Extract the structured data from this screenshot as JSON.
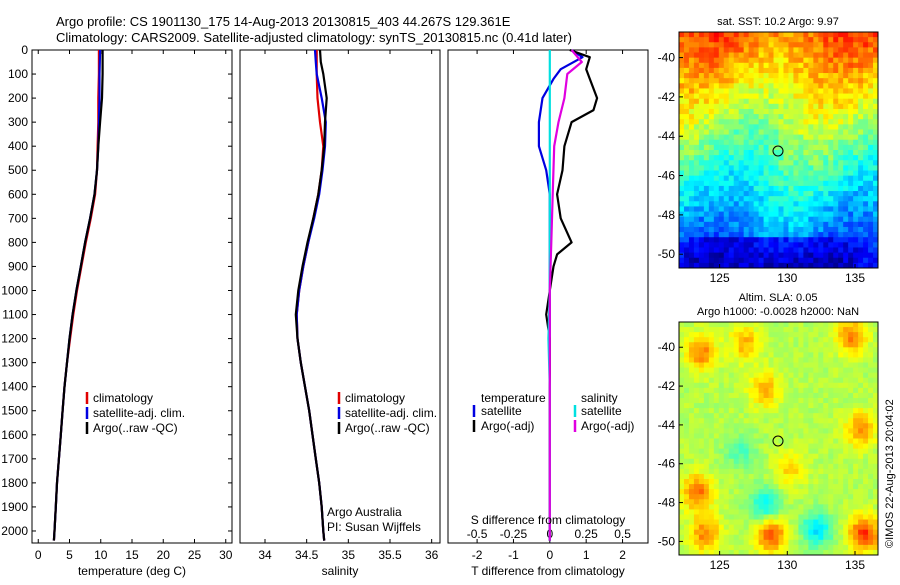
{
  "header": {
    "line1": "Argo profile: CS 1901130_175 14-Aug-2013 20130815_403 44.267S 129.361E",
    "line2": "Climatology: CARS2009. Satellite-adjusted climatology: synTS_20130815.nc (0.41d later)"
  },
  "colors": {
    "climatology": "#e00000",
    "satellite": "#0000e0",
    "argo": "#000000",
    "salinity_satellite": "#00e0e0",
    "salinity_argo": "#e000e0"
  },
  "panels": {
    "depth_ticks": [
      "0",
      "100",
      "200",
      "300",
      "400",
      "500",
      "600",
      "700",
      "800",
      "900",
      "1000",
      "1100",
      "1200",
      "1300",
      "1400",
      "1500",
      "1600",
      "1700",
      "1800",
      "1900",
      "2000"
    ],
    "temperature": {
      "xlabel": "temperature (deg C)",
      "xticks": [
        "0",
        "5",
        "10",
        "15",
        "20",
        "25",
        "30"
      ],
      "legend": [
        "climatology",
        "satellite-adj. clim.",
        "Argo(..raw -QC)"
      ]
    },
    "salinity": {
      "xlabel": "salinity",
      "xticks": [
        "34",
        "34.5",
        "35",
        "35.5",
        "36"
      ],
      "legend": [
        "climatology",
        "satellite-adj. clim.",
        "Argo(..raw -QC)"
      ],
      "credit_line1": "Argo Australia",
      "credit_line2": "PI: Susan Wijffels"
    },
    "difference": {
      "xlabel": "T difference from climatology",
      "xlabel_top": "S difference from climatology",
      "xticks": [
        "-2",
        "-1",
        "0",
        "1",
        "2"
      ],
      "sticks": [
        "-0.5",
        "-0.25",
        "0",
        "0.25",
        "0.5"
      ],
      "legend_temp_title": "temperature",
      "legend_sal_title": "salinity",
      "legend_temp": [
        "satellite",
        "Argo(-adj)"
      ],
      "legend_sal": [
        "satellite",
        "Argo(-adj)"
      ]
    }
  },
  "maps": {
    "sst": {
      "title": "sat. SST: 10.2  Argo: 9.97",
      "yticks": [
        "-40",
        "-42",
        "-44",
        "-46",
        "-48",
        "-50"
      ],
      "xticks": [
        "125",
        "130",
        "135"
      ]
    },
    "sla": {
      "title_line1": "Altim. SLA: 0.05",
      "title_line2": "Argo h1000: -0.0028 h2000: NaN",
      "yticks": [
        "-40",
        "-42",
        "-44",
        "-46",
        "-48",
        "-50"
      ],
      "xticks": [
        "125",
        "130",
        "135"
      ]
    },
    "float_position": {
      "lon": 129.361,
      "lat": -44.267
    }
  },
  "side_stamp": "©IMOS 22-Aug-2013 20:04:02",
  "chart_data": {
    "type": "line",
    "y_axis": {
      "label": "",
      "ylim": [
        0,
        2050
      ],
      "reversed": true
    },
    "temperature": {
      "xlim": [
        -1,
        31
      ],
      "series": [
        {
          "name": "climatology",
          "depth": [
            0,
            100,
            200,
            300,
            400,
            500,
            600,
            700,
            800,
            900,
            1000,
            1100,
            1200,
            1300,
            1400,
            1500,
            1600,
            1700,
            1800,
            1900,
            2000,
            2040
          ],
          "values": [
            9.7,
            9.7,
            9.6,
            9.6,
            9.5,
            9.4,
            9.1,
            8.4,
            7.6,
            6.9,
            6.2,
            5.6,
            5.1,
            4.6,
            4.2,
            3.9,
            3.6,
            3.3,
            3.0,
            2.8,
            2.6,
            2.5
          ]
        },
        {
          "name": "satellite-adj. clim.",
          "depth": [
            0,
            100,
            200,
            300,
            400,
            500,
            600,
            700,
            800,
            900,
            1000,
            1100,
            1200,
            1300,
            1400,
            1500,
            1600,
            1700,
            1800,
            1900,
            2000,
            2040
          ],
          "values": [
            9.9,
            9.8,
            9.8,
            9.7,
            9.6,
            9.4,
            9.0,
            8.3,
            7.5,
            6.8,
            6.1,
            5.5,
            5.0,
            4.6,
            4.2,
            3.9,
            3.6,
            3.3,
            3.0,
            2.8,
            2.6,
            2.5
          ]
        },
        {
          "name": "Argo(..raw -QC)",
          "depth": [
            0,
            100,
            200,
            300,
            400,
            500,
            600,
            700,
            800,
            900,
            1000,
            1100,
            1200,
            1300,
            1400,
            1500,
            1600,
            1700,
            1800,
            1900,
            2000,
            2040
          ],
          "values": [
            10.3,
            10.3,
            10.2,
            9.9,
            9.6,
            9.4,
            9.0,
            8.3,
            7.5,
            6.8,
            6.1,
            5.5,
            5.0,
            4.6,
            4.2,
            3.9,
            3.6,
            3.3,
            3.0,
            2.8,
            2.6,
            2.5
          ]
        }
      ]
    },
    "salinity": {
      "xlim": [
        33.7,
        36.1
      ],
      "series": [
        {
          "name": "climatology",
          "depth": [
            0,
            50,
            100,
            200,
            300,
            400,
            500,
            600,
            700,
            800,
            900,
            1000,
            1100,
            1200,
            1300,
            1400,
            1500,
            1600,
            1700,
            1800,
            1900,
            2000,
            2040
          ],
          "values": [
            34.62,
            34.62,
            34.62,
            34.63,
            34.66,
            34.7,
            34.68,
            34.64,
            34.58,
            34.52,
            34.46,
            34.41,
            34.38,
            34.39,
            34.43,
            34.48,
            34.53,
            34.57,
            34.61,
            34.65,
            34.68,
            34.7,
            34.71
          ]
        },
        {
          "name": "satellite-adj. clim.",
          "depth": [
            0,
            50,
            100,
            200,
            300,
            400,
            500,
            600,
            700,
            800,
            900,
            1000,
            1100,
            1200,
            1300,
            1400,
            1500,
            1600,
            1700,
            1800,
            1900,
            2000,
            2040
          ],
          "values": [
            34.6,
            34.61,
            34.62,
            34.68,
            34.73,
            34.72,
            34.69,
            34.65,
            34.59,
            34.52,
            34.46,
            34.41,
            34.38,
            34.39,
            34.43,
            34.48,
            34.53,
            34.57,
            34.61,
            34.65,
            34.68,
            34.7,
            34.71
          ]
        },
        {
          "name": "Argo(..raw -QC)",
          "depth": [
            0,
            50,
            100,
            200,
            300,
            400,
            500,
            600,
            700,
            800,
            900,
            1000,
            1100,
            1200,
            1300,
            1400,
            1500,
            1600,
            1700,
            1800,
            1900,
            2000,
            2040
          ],
          "values": [
            34.66,
            34.67,
            34.7,
            34.74,
            34.72,
            34.71,
            34.68,
            34.64,
            34.58,
            34.51,
            34.45,
            34.4,
            34.37,
            34.39,
            34.43,
            34.48,
            34.53,
            34.57,
            34.61,
            34.65,
            34.68,
            34.7,
            34.71
          ]
        }
      ]
    },
    "difference": {
      "xlim_T": [
        -2.8,
        2.7
      ],
      "xlim_S": [
        -0.7,
        0.675
      ],
      "series": [
        {
          "name": "temperature satellite",
          "axis": "T",
          "depth": [
            0,
            30,
            80,
            120,
            200,
            300,
            400,
            500,
            600,
            700,
            800,
            1000,
            1200,
            1400,
            1600,
            1800,
            2000,
            2040
          ],
          "values": [
            0.6,
            0.9,
            0.3,
            0.1,
            -0.2,
            -0.3,
            -0.3,
            -0.1,
            0.0,
            0.0,
            0.0,
            0.0,
            0.0,
            0.0,
            0.0,
            0.0,
            0.0,
            0.0
          ]
        },
        {
          "name": "temperature Argo(-adj)",
          "axis": "T",
          "depth": [
            0,
            30,
            80,
            120,
            200,
            250,
            300,
            400,
            500,
            600,
            700,
            800,
            850,
            900,
            1000,
            1100,
            1200,
            1400,
            1600,
            1800,
            2000,
            2040
          ],
          "values": [
            0.55,
            1.1,
            1.0,
            1.1,
            1.3,
            1.2,
            0.6,
            0.4,
            0.35,
            0.2,
            0.3,
            0.6,
            0.2,
            0.1,
            0.0,
            -0.1,
            0.0,
            0.0,
            0.0,
            0.0,
            0.0,
            0.0
          ]
        },
        {
          "name": "salinity satellite",
          "axis": "S",
          "depth": [
            0,
            100,
            200,
            400,
            600,
            800,
            1000,
            1200,
            1400,
            1600,
            1800,
            2000,
            2040
          ],
          "values": [
            0.0,
            0.0,
            0.0,
            0.0,
            0.0,
            0.0,
            0.0,
            -0.01,
            0.0,
            0.0,
            0.0,
            0.0,
            0.0
          ]
        },
        {
          "name": "salinity Argo(-adj)",
          "axis": "S",
          "depth": [
            0,
            50,
            100,
            200,
            300,
            400,
            600,
            800,
            1000,
            1200,
            1400,
            1600,
            1800,
            2000,
            2040
          ],
          "values": [
            0.15,
            0.22,
            0.12,
            0.1,
            0.06,
            0.03,
            0.02,
            0.01,
            0.0,
            0.0,
            0.0,
            0.0,
            0.0,
            0.0,
            0.0
          ]
        }
      ]
    }
  }
}
